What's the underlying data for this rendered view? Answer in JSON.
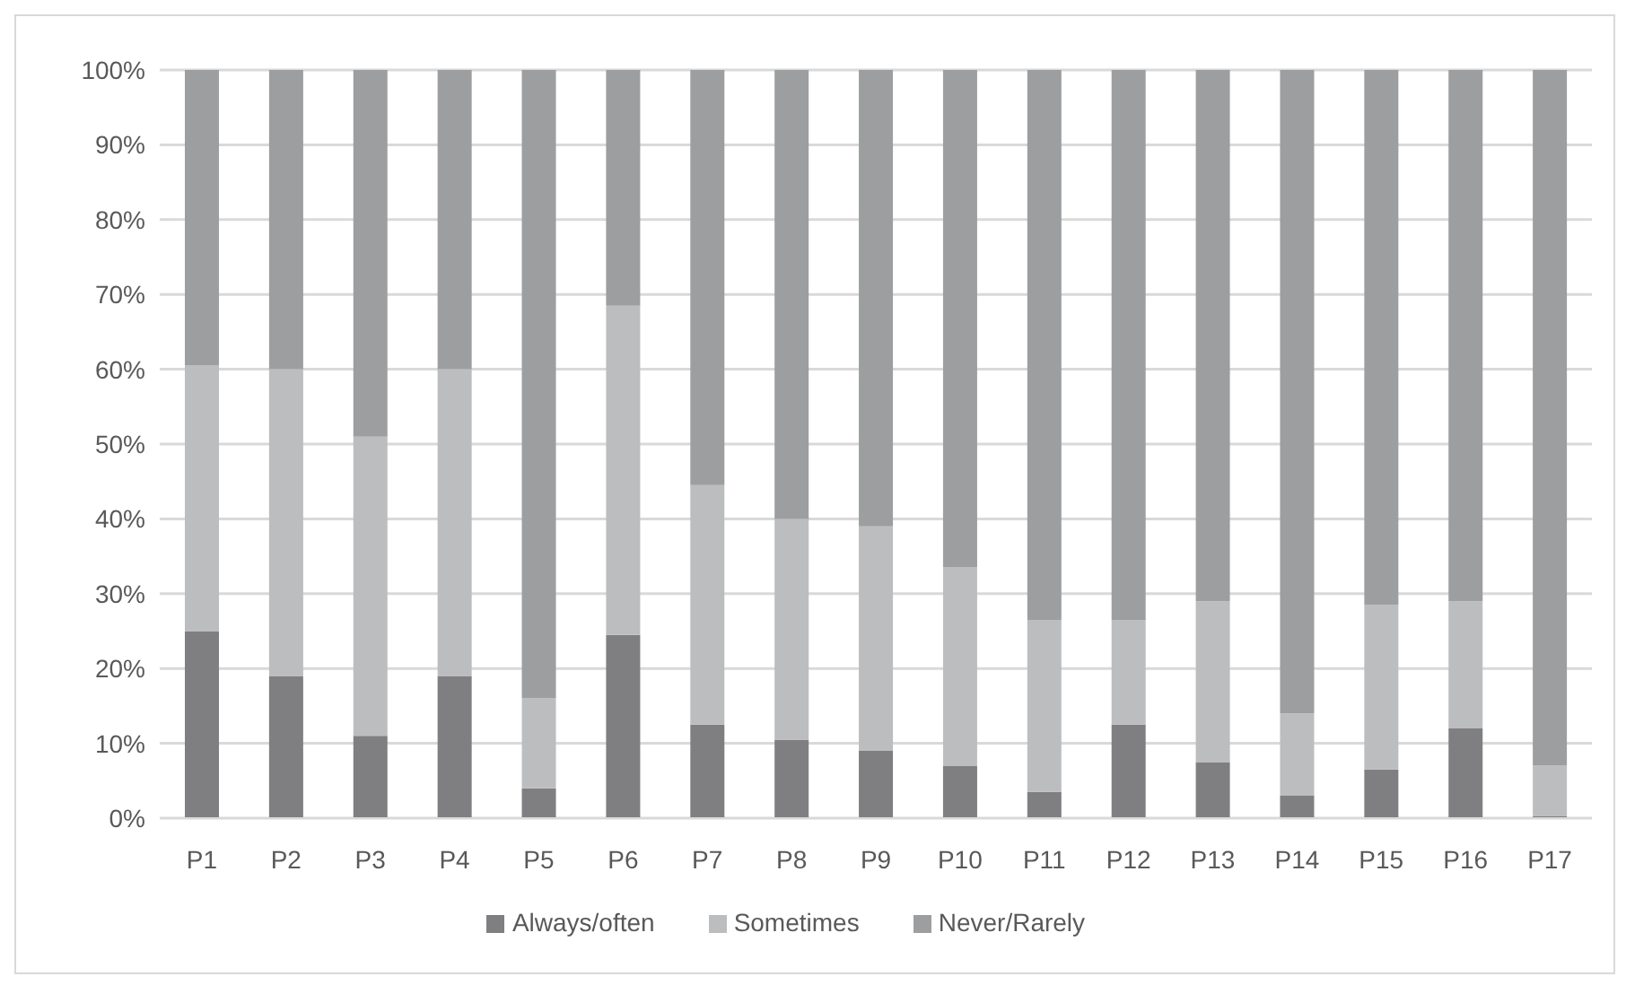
{
  "chart_data": {
    "type": "bar",
    "stacked": true,
    "categories": [
      "P1",
      "P2",
      "P3",
      "P4",
      "P5",
      "P6",
      "P7",
      "P8",
      "P9",
      "P10",
      "P11",
      "P12",
      "P13",
      "P14",
      "P15",
      "P16",
      "P17"
    ],
    "series": [
      {
        "name": "Always/often",
        "color": "#7f7f81",
        "values": [
          25,
          19,
          11,
          19,
          4,
          24.5,
          12.5,
          10.5,
          9,
          7,
          3.5,
          12.5,
          7.5,
          3,
          6.5,
          12,
          0.3
        ]
      },
      {
        "name": "Sometimes",
        "color": "#bcbdbf",
        "values": [
          35.5,
          41,
          40,
          41,
          12,
          44,
          32,
          29.5,
          30,
          26.5,
          23,
          14,
          21.5,
          11,
          22,
          17,
          6.7
        ]
      },
      {
        "name": "Never/Rarely",
        "color": "#9d9ea0",
        "values": [
          39.5,
          40,
          49,
          40,
          84,
          31.5,
          55.5,
          60,
          61,
          66.5,
          73.5,
          73.5,
          71,
          86,
          71.5,
          71,
          93
        ]
      }
    ],
    "ylim": [
      0,
      100
    ],
    "yticks": [
      {
        "value": 0,
        "label": "0%"
      },
      {
        "value": 10,
        "label": "10%"
      },
      {
        "value": 20,
        "label": "20%"
      },
      {
        "value": 30,
        "label": "30%"
      },
      {
        "value": 40,
        "label": "40%"
      },
      {
        "value": 50,
        "label": "50%"
      },
      {
        "value": 60,
        "label": "60%"
      },
      {
        "value": 70,
        "label": "70%"
      },
      {
        "value": 80,
        "label": "80%"
      },
      {
        "value": 90,
        "label": "90%"
      },
      {
        "value": 100,
        "label": "100%"
      }
    ],
    "grid": "y",
    "legend": "bottom"
  }
}
